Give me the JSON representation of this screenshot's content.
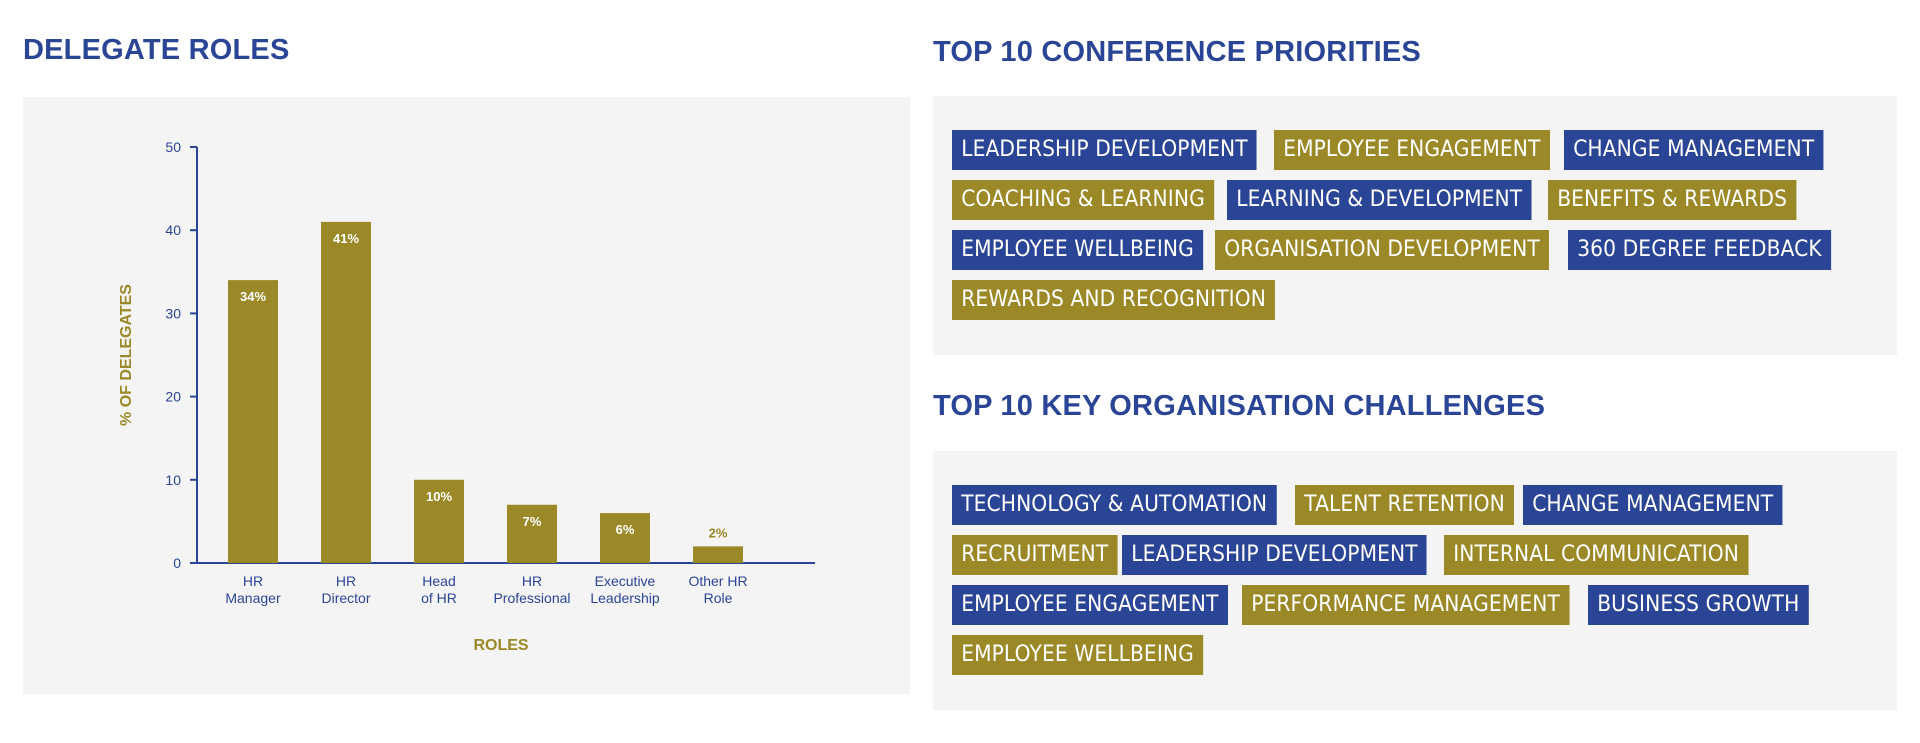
{
  "headings": {
    "roles": "DELEGATE ROLES",
    "priorities": "TOP 10 CONFERENCE PRIORITIES",
    "challenges": "TOP 10 KEY ORGANISATION CHALLENGES"
  },
  "colors": {
    "blue": "#2b4596",
    "gold": "#9b8826",
    "panel": "#f4f4f4"
  },
  "chart_data": {
    "type": "bar",
    "title": "DELEGATE ROLES",
    "xlabel": "ROLES",
    "ylabel": "% OF DELEGATES",
    "categories": [
      [
        "HR",
        "Manager"
      ],
      [
        "HR",
        "Director"
      ],
      [
        "Head",
        "of HR"
      ],
      [
        "HR",
        "Professional"
      ],
      [
        "Executive",
        "Leadership"
      ],
      [
        "Other HR",
        "Role"
      ]
    ],
    "values": [
      34,
      41,
      10,
      7,
      6,
      2
    ],
    "data_labels": [
      "34%",
      "41%",
      "10%",
      "7%",
      "6%",
      "2%"
    ],
    "ylim": [
      0,
      50
    ],
    "yticks": [
      0,
      10,
      20,
      30,
      40,
      50
    ],
    "grid": false,
    "bar_color": "#9b8826",
    "axis_color": "#2b4596"
  },
  "priorities": [
    {
      "label": "LEADERSHIP DEVELOPMENT",
      "color": "#2b4596"
    },
    {
      "label": "EMPLOYEE ENGAGEMENT",
      "color": "#9b8826"
    },
    {
      "label": "CHANGE MANAGEMENT",
      "color": "#2b4596"
    },
    {
      "label": "COACHING & LEARNING",
      "color": "#9b8826"
    },
    {
      "label": "LEARNING & DEVELOPMENT",
      "color": "#2b4596"
    },
    {
      "label": "BENEFITS & REWARDS",
      "color": "#9b8826"
    },
    {
      "label": "EMPLOYEE WELLBEING",
      "color": "#2b4596"
    },
    {
      "label": "ORGANISATION DEVELOPMENT",
      "color": "#9b8826"
    },
    {
      "label": "360 DEGREE FEEDBACK",
      "color": "#2b4596"
    },
    {
      "label": "REWARDS AND RECOGNITION",
      "color": "#9b8826"
    }
  ],
  "challenges": [
    {
      "label": "TECHNOLOGY & AUTOMATION",
      "color": "#2b4596"
    },
    {
      "label": "TALENT RETENTION",
      "color": "#9b8826"
    },
    {
      "label": "CHANGE MANAGEMENT",
      "color": "#2b4596"
    },
    {
      "label": "RECRUITMENT",
      "color": "#9b8826"
    },
    {
      "label": "LEADERSHIP DEVELOPMENT",
      "color": "#2b4596"
    },
    {
      "label": "INTERNAL COMMUNICATION",
      "color": "#9b8826"
    },
    {
      "label": "EMPLOYEE ENGAGEMENT",
      "color": "#2b4596"
    },
    {
      "label": "PERFORMANCE MANAGEMENT",
      "color": "#9b8826"
    },
    {
      "label": "BUSINESS GROWTH",
      "color": "#2b4596"
    },
    {
      "label": "EMPLOYEE WELLBEING",
      "color": "#9b8826"
    }
  ]
}
